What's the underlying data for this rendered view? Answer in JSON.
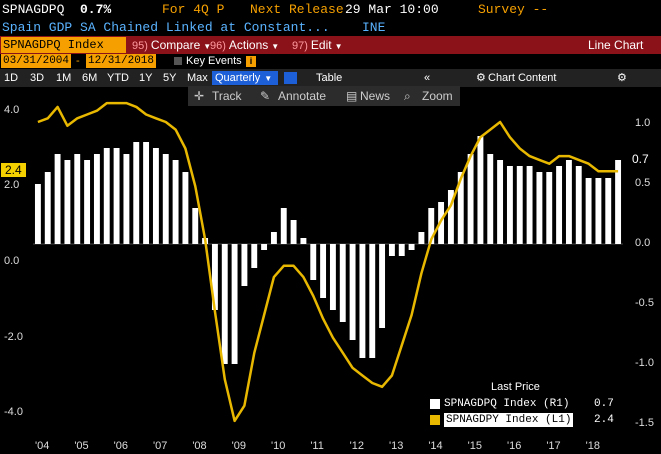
{
  "header": {
    "ticker": "SPNAGDPQ",
    "value": "0.7%",
    "period": "For 4Q P",
    "next_release_label": "Next Release",
    "next_release_date": "29 Mar 10:00",
    "survey": "Survey --"
  },
  "subtitle": {
    "description": "Spain GDP SA Chained Linked at Constant...",
    "source": "INE"
  },
  "menu": {
    "ticker_field": "SPNAGDPQ Index",
    "compare_num": "95)",
    "compare": "Compare",
    "actions_num": "96)",
    "actions": "Actions",
    "edit_num": "97)",
    "edit": "Edit",
    "chart_type": "Line Chart"
  },
  "dates": {
    "start": "03/31/2004",
    "end": "12/31/2018",
    "key_events": "Key Events"
  },
  "ranges": [
    "1D",
    "3D",
    "1M",
    "6M",
    "YTD",
    "1Y",
    "5Y",
    "Max"
  ],
  "frequency": "Quarterly",
  "table_label": "Table",
  "chart_content_label": "Chart Content",
  "toolbar": {
    "track": "Track",
    "annotate": "Annotate",
    "news": "News",
    "zoom": "Zoom"
  },
  "colors": {
    "accent": "#f5a000",
    "line": "#e8b800",
    "bar": "#ffffff",
    "menu_bar": "#8b1219",
    "link": "#5ab3ff"
  },
  "chart_data": {
    "type": "bar",
    "x": [
      "Q1 2004",
      "Q2 2004",
      "Q3 2004",
      "Q4 2004",
      "Q1 2005",
      "Q2 2005",
      "Q3 2005",
      "Q4 2005",
      "Q1 2006",
      "Q2 2006",
      "Q3 2006",
      "Q4 2006",
      "Q1 2007",
      "Q2 2007",
      "Q3 2007",
      "Q4 2007",
      "Q1 2008",
      "Q2 2008",
      "Q3 2008",
      "Q4 2008",
      "Q1 2009",
      "Q2 2009",
      "Q3 2009",
      "Q4 2009",
      "Q1 2010",
      "Q2 2010",
      "Q3 2010",
      "Q4 2010",
      "Q1 2011",
      "Q2 2011",
      "Q3 2011",
      "Q4 2011",
      "Q1 2012",
      "Q2 2012",
      "Q3 2012",
      "Q4 2012",
      "Q1 2013",
      "Q2 2013",
      "Q3 2013",
      "Q4 2013",
      "Q1 2014",
      "Q2 2014",
      "Q3 2014",
      "Q4 2014",
      "Q1 2015",
      "Q2 2015",
      "Q3 2015",
      "Q4 2015",
      "Q1 2016",
      "Q2 2016",
      "Q3 2016",
      "Q4 2016",
      "Q1 2017",
      "Q2 2017",
      "Q3 2017",
      "Q4 2017",
      "Q1 2018",
      "Q2 2018",
      "Q3 2018",
      "Q4 2018"
    ],
    "x_tick_labels": [
      "'04",
      "'05",
      "'06",
      "'07",
      "'08",
      "'09",
      "'10",
      "'11",
      "'12",
      "'13",
      "'14",
      "'15",
      "'16",
      "'17",
      "'18"
    ],
    "series": [
      {
        "name": "SPNAGDPQ Index (R1)",
        "axis": "right",
        "render": "bar",
        "values": [
          0.5,
          0.6,
          0.75,
          0.7,
          0.75,
          0.7,
          0.75,
          0.8,
          0.8,
          0.75,
          0.85,
          0.85,
          0.8,
          0.75,
          0.7,
          0.6,
          0.3,
          0.05,
          -0.55,
          -1.0,
          -1.0,
          -0.35,
          -0.2,
          -0.05,
          0.1,
          0.3,
          0.2,
          0.05,
          -0.3,
          -0.45,
          -0.55,
          -0.65,
          -0.8,
          -0.95,
          -0.95,
          -0.7,
          -0.1,
          -0.1,
          -0.05,
          0.1,
          0.3,
          0.35,
          0.45,
          0.6,
          0.75,
          0.9,
          0.75,
          0.7,
          0.65,
          0.65,
          0.65,
          0.6,
          0.6,
          0.65,
          0.7,
          0.65,
          0.55,
          0.55,
          0.55,
          0.7
        ]
      },
      {
        "name": "SPNAGDPY Index (L1)",
        "axis": "left",
        "render": "line",
        "values": [
          3.7,
          3.8,
          4.1,
          3.6,
          3.8,
          3.9,
          4.0,
          4.2,
          4.2,
          4.2,
          4.1,
          3.9,
          3.8,
          3.7,
          3.5,
          3.0,
          2.0,
          0.6,
          -1.3,
          -3.1,
          -4.2,
          -3.8,
          -2.4,
          -1.4,
          -0.4,
          -0.1,
          -0.1,
          -0.4,
          -0.9,
          -1.5,
          -2.0,
          -2.4,
          -2.8,
          -3.0,
          -3.2,
          -3.3,
          -3.0,
          -2.2,
          -1.4,
          -0.3,
          0.6,
          1.1,
          1.5,
          2.2,
          2.8,
          3.3,
          3.5,
          3.7,
          3.3,
          3.0,
          2.8,
          2.7,
          2.6,
          2.8,
          2.8,
          2.7,
          2.6,
          2.4,
          2.4,
          2.4
        ]
      }
    ],
    "left_axis": {
      "ylim": [
        -4.6,
        4.6
      ],
      "ticks": [
        "4.0",
        "2.0",
        "0.0",
        "-2.0",
        "-4.0"
      ],
      "current_label": "2.4"
    },
    "right_axis": {
      "ylim": [
        -1.6,
        1.3
      ],
      "ticks": [
        "1.0",
        "0.5",
        "0.0",
        "-0.5",
        "-1.0",
        "-1.5"
      ],
      "current_label": "0.7"
    },
    "legend": {
      "title": "Last Price",
      "entries": [
        {
          "label": "SPNAGDPQ Index  (R1)",
          "value": "0.7",
          "color": "#ffffff"
        },
        {
          "label": "SPNAGDPY Index  (L1)",
          "value": "2.4",
          "color": "#e8b800"
        }
      ]
    }
  }
}
